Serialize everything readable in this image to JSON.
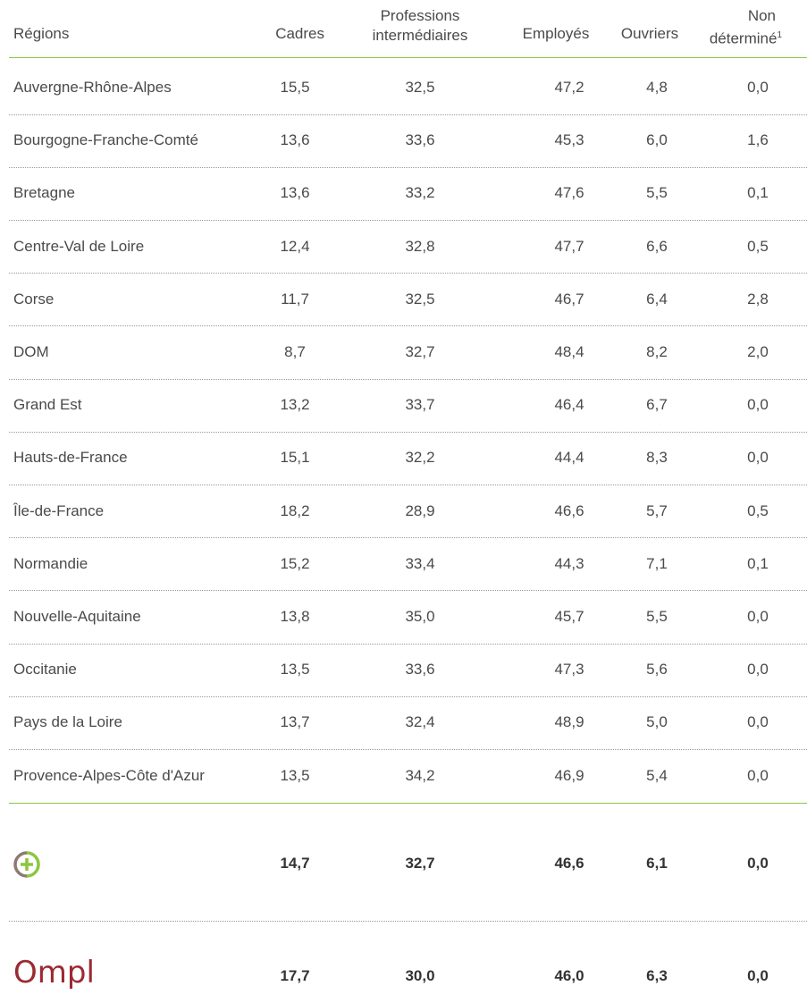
{
  "table": {
    "header": {
      "region": "Régions",
      "cadres": "Cadres",
      "professions": [
        "Professions",
        "intermédiaires"
      ],
      "employes": "Employés",
      "ouvriers": "Ouvriers",
      "non_determine": [
        "Non",
        "déterminé"
      ],
      "note": "1"
    },
    "rows": [
      [
        "Auvergne-Rhône-Alpes",
        "15,5",
        "32,5",
        "47,2",
        "4,8",
        "0,0"
      ],
      [
        "Bourgogne-Franche-Comté",
        "13,6",
        "33,6",
        "45,3",
        "6,0",
        "1,6"
      ],
      [
        "Bretagne",
        "13,6",
        "33,2",
        "47,6",
        "5,5",
        "0,1"
      ],
      [
        "Centre-Val de Loire",
        "12,4",
        "32,8",
        "47,7",
        "6,6",
        "0,5"
      ],
      [
        "Corse",
        "11,7",
        "32,5",
        "46,7",
        "6,4",
        "2,8"
      ],
      [
        "DOM",
        "8,7",
        "32,7",
        "48,4",
        "8,2",
        "2,0"
      ],
      [
        "Grand Est",
        "13,2",
        "33,7",
        "46,4",
        "6,7",
        "0,0"
      ],
      [
        "Hauts-de-France",
        "15,1",
        "32,2",
        "44,4",
        "8,3",
        "0,0"
      ],
      [
        "Île-de-France",
        "18,2",
        "28,9",
        "46,6",
        "5,7",
        "0,5"
      ],
      [
        "Normandie",
        "15,2",
        "33,4",
        "44,3",
        "7,1",
        "0,1"
      ],
      [
        "Nouvelle-Aquitaine",
        "13,8",
        "35,0",
        "45,7",
        "5,5",
        "0,0"
      ],
      [
        "Occitanie",
        "13,5",
        "33,6",
        "47,3",
        "5,6",
        "0,0"
      ],
      [
        "Pays de la Loire",
        "13,7",
        "32,4",
        "48,9",
        "5,0",
        "0,0"
      ],
      [
        "Provence-Alpes-Côte d'Azur",
        "13,5",
        "34,2",
        "46,9",
        "5,4",
        "0,0"
      ]
    ],
    "totals": [
      {
        "values": [
          "14,7",
          "32,7",
          "46,6",
          "6,1",
          "0,0"
        ]
      },
      {
        "logo": "Ompl",
        "values": [
          "17,7",
          "30,0",
          "46,0",
          "6,3",
          "0,0"
        ]
      }
    ]
  }
}
